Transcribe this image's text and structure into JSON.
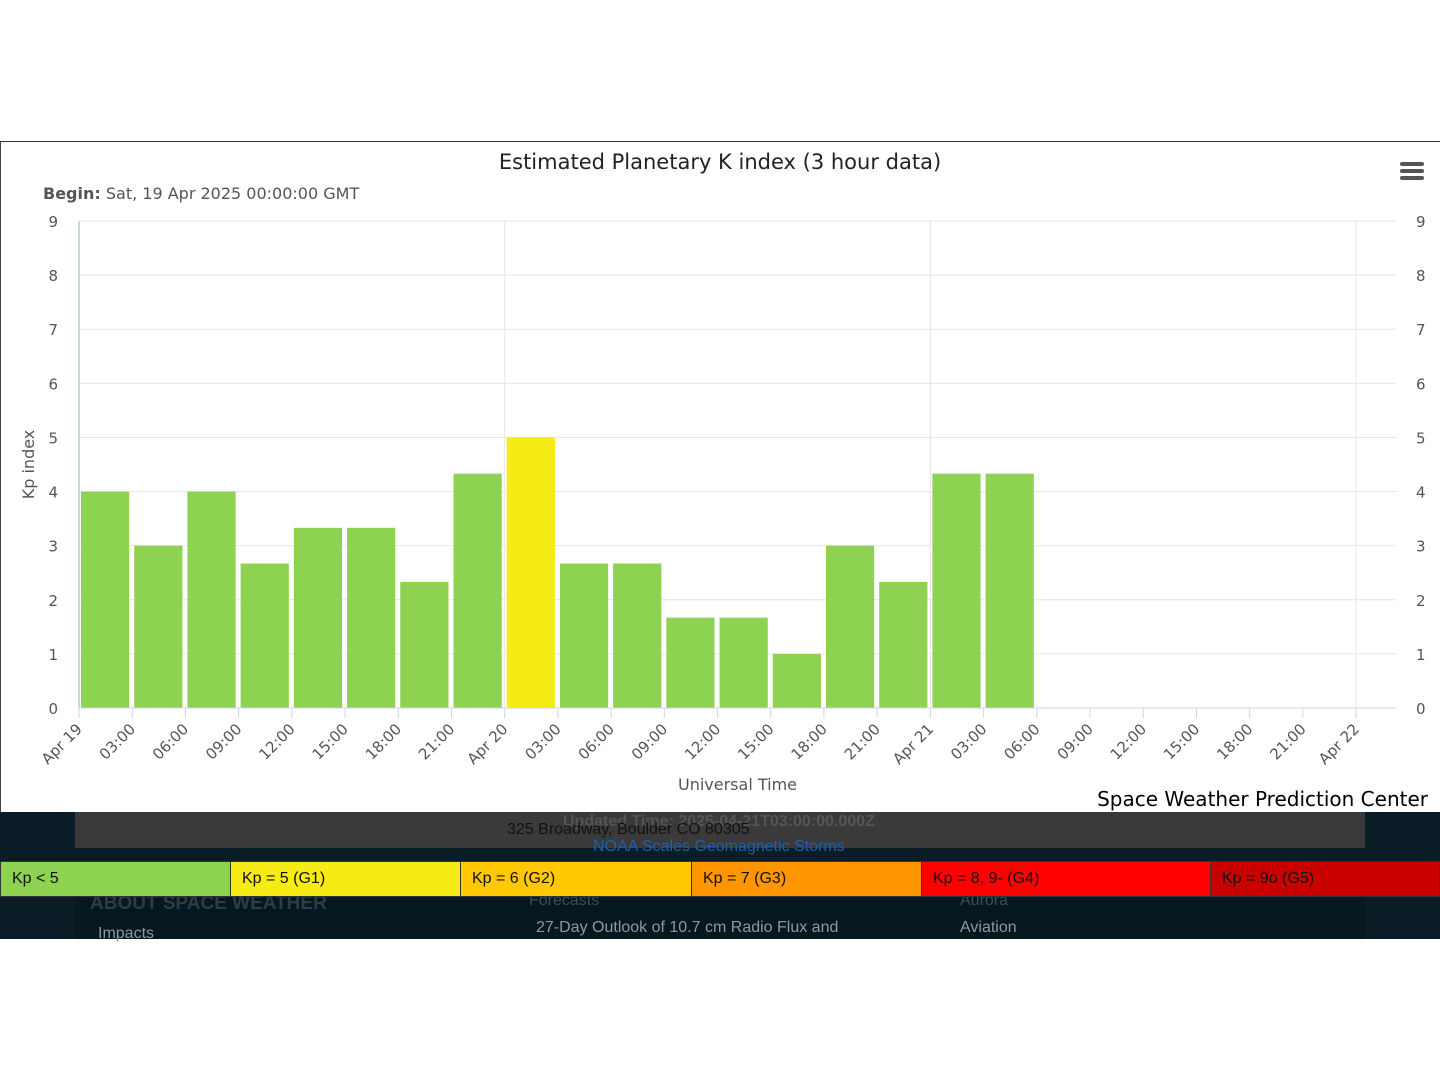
{
  "chart_data": {
    "type": "bar",
    "title": "Estimated Planetary K index (3 hour data)",
    "subtitle_label": "Begin:",
    "subtitle_value": "Sat, 19 Apr 2025 00:00:00 GMT",
    "xlabel": "Universal Time",
    "ylabel": "Kp index",
    "ylim": [
      0,
      9
    ],
    "yticks": [
      "0",
      "1",
      "2",
      "3",
      "4",
      "5",
      "6",
      "7",
      "8",
      "9"
    ],
    "x_start": "2025-04-19T00:00Z",
    "x_end": "2025-04-22T00:00Z",
    "interval_hours": 3,
    "xtick_labels": [
      "Apr 19",
      "03:00",
      "06:00",
      "09:00",
      "12:00",
      "15:00",
      "18:00",
      "21:00",
      "Apr 20",
      "03:00",
      "06:00",
      "09:00",
      "12:00",
      "15:00",
      "18:00",
      "21:00",
      "Apr 21",
      "03:00",
      "06:00",
      "09:00",
      "12:00",
      "15:00",
      "18:00",
      "21:00",
      "Apr 22"
    ],
    "values": [
      4.0,
      3.0,
      4.0,
      2.67,
      3.33,
      3.33,
      2.33,
      4.33,
      5.0,
      2.67,
      2.67,
      1.67,
      1.67,
      1.0,
      3.0,
      2.33,
      4.33,
      4.33
    ],
    "colors": {
      "kp_lt_5": "#8ed252",
      "kp_5": "#f6eb14",
      "kp_6": "#ffc800",
      "kp_7": "#ff9600",
      "kp_8": "#ff0000",
      "kp_9": "#c80000"
    },
    "grid": true,
    "legend_position": "bottom"
  },
  "credit": "Space Weather Prediction Center",
  "legend": [
    {
      "label": "Kp < 5",
      "color": "#8ed252"
    },
    {
      "label": "Kp = 5 (G1)",
      "color": "#f6eb14"
    },
    {
      "label": "Kp = 6 (G2)",
      "color": "#ffc800"
    },
    {
      "label": "Kp = 7 (G3)",
      "color": "#ff9600"
    },
    {
      "label": "Kp = 8, 9- (G4)",
      "color": "#ff0000"
    },
    {
      "label": "Kp = 9o (G5)",
      "color": "#c80000"
    }
  ],
  "footer": {
    "address": "325 Broadway, Boulder CO 80305",
    "updated_time": "Updated Time: 2025-04-21T03:00:00.000Z",
    "noaa_link": "NOAA Scales Geomagnetic Storms",
    "about_heading": "ABOUT SPACE WEATHER",
    "impacts": "Impacts",
    "forecasts": "Forecasts",
    "outlook": "27-Day Outlook of 10.7 cm Radio Flux and",
    "aurora": "Aurora",
    "aviation": "Aviation"
  },
  "menu_icon": "hamburger-menu-icon"
}
